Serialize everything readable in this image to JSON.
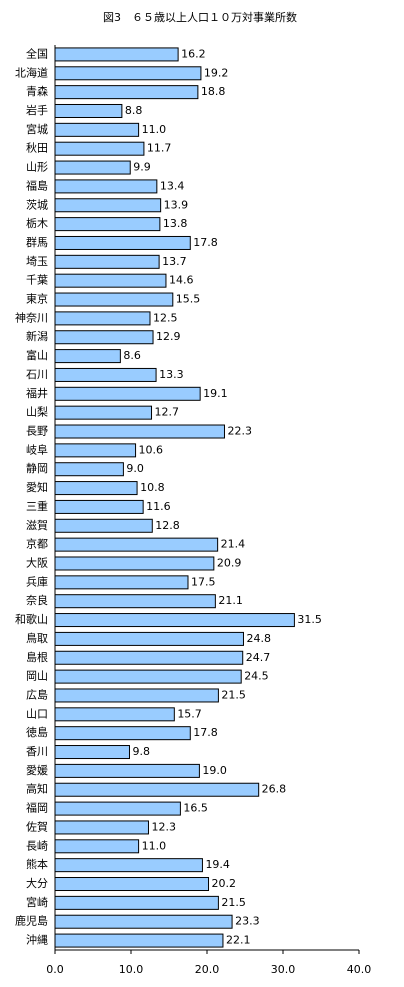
{
  "chart_data": {
    "type": "bar",
    "orientation": "horizontal",
    "title": "図3　６５歳以上人口１０万対事業所数",
    "categories": [
      "全国",
      "北海道",
      "青森",
      "岩手",
      "宮城",
      "秋田",
      "山形",
      "福島",
      "茨城",
      "栃木",
      "群馬",
      "埼玉",
      "千葉",
      "東京",
      "神奈川",
      "新潟",
      "富山",
      "石川",
      "福井",
      "山梨",
      "長野",
      "岐阜",
      "静岡",
      "愛知",
      "三重",
      "滋賀",
      "京都",
      "大阪",
      "兵庫",
      "奈良",
      "和歌山",
      "鳥取",
      "島根",
      "岡山",
      "広島",
      "山口",
      "徳島",
      "香川",
      "愛媛",
      "高知",
      "福岡",
      "佐賀",
      "長崎",
      "熊本",
      "大分",
      "宮崎",
      "鹿児島",
      "沖縄"
    ],
    "values": [
      16.2,
      19.2,
      18.8,
      8.8,
      11.0,
      11.7,
      9.9,
      13.4,
      13.9,
      13.8,
      17.8,
      13.7,
      14.6,
      15.5,
      12.5,
      12.9,
      8.6,
      13.3,
      19.1,
      12.7,
      22.3,
      10.6,
      9.0,
      10.8,
      11.6,
      12.8,
      21.4,
      20.9,
      17.5,
      21.1,
      31.5,
      24.8,
      24.7,
      24.5,
      21.5,
      15.7,
      17.8,
      9.8,
      19.0,
      26.8,
      16.5,
      12.3,
      11.0,
      19.4,
      20.2,
      21.5,
      23.3,
      22.1
    ],
    "value_labels": [
      "16.2",
      "19.2",
      "18.8",
      "8.8",
      "11.0",
      "11.7",
      "9.9",
      "13.4",
      "13.9",
      "13.8",
      "17.8",
      "13.7",
      "14.6",
      "15.5",
      "12.5",
      "12.9",
      "8.6",
      "13.3",
      "19.1",
      "12.7",
      "22.3",
      "10.6",
      "9.0",
      "10.8",
      "11.6",
      "12.8",
      "21.4",
      "20.9",
      "17.5",
      "21.1",
      "31.5",
      "24.8",
      "24.7",
      "24.5",
      "21.5",
      "15.7",
      "17.8",
      "9.8",
      "19.0",
      "26.8",
      "16.5",
      "12.3",
      "11.0",
      "19.4",
      "20.2",
      "21.5",
      "23.3",
      "22.1"
    ],
    "color": "#99ccff",
    "xlim": [
      0,
      40
    ],
    "xticks": [
      {
        "value": 0,
        "label": "0.0"
      },
      {
        "value": 10,
        "label": "10.0"
      },
      {
        "value": 20,
        "label": "20.0"
      },
      {
        "value": 30,
        "label": "30.0"
      },
      {
        "value": 40,
        "label": "40.0"
      }
    ],
    "grid": false
  }
}
